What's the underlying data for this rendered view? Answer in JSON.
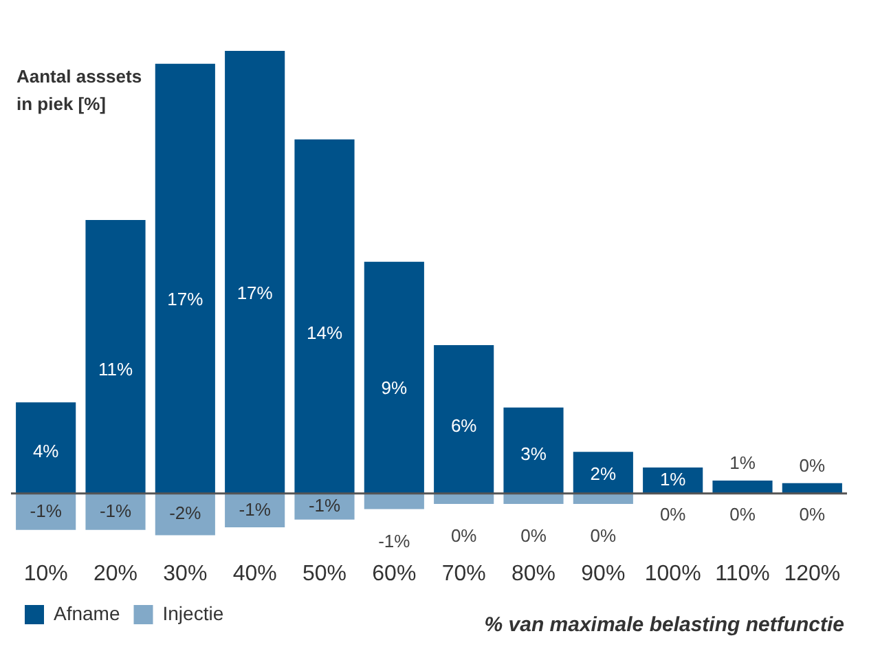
{
  "chart_data": {
    "type": "bar",
    "ylabel": "Aantal asssets\nin piek [%]",
    "xlabel": "% van maximale belasting netfunctie",
    "categories": [
      "10%",
      "20%",
      "30%",
      "40%",
      "50%",
      "60%",
      "70%",
      "80%",
      "90%",
      "100%",
      "110%",
      "120%"
    ],
    "stacked": true,
    "legend": "bottom left",
    "series": [
      {
        "name": "Afname",
        "color": "#00528a",
        "values": [
          3.5,
          10.5,
          16.5,
          17,
          13.6,
          8.9,
          5.7,
          3.3,
          1.6,
          1,
          0.5,
          0.4
        ],
        "value_labels": [
          "4%",
          "11%",
          "17%",
          "17%",
          "14%",
          "9%",
          "6%",
          "3%",
          "2%",
          "1%",
          "1%",
          "0%"
        ]
      },
      {
        "name": "Injectie",
        "color": "#82a9c8",
        "values": [
          -1.4,
          -1.4,
          -1.6,
          -1.3,
          -1,
          -0.6,
          -0.4,
          -0.4,
          -0.4,
          0,
          0,
          0
        ],
        "value_labels": [
          "-1%",
          "-1%",
          "-2%",
          "-1%",
          "-1%",
          "-1%",
          "0%",
          "0%",
          "0%",
          "0%",
          "0%",
          "0%"
        ]
      }
    ]
  }
}
